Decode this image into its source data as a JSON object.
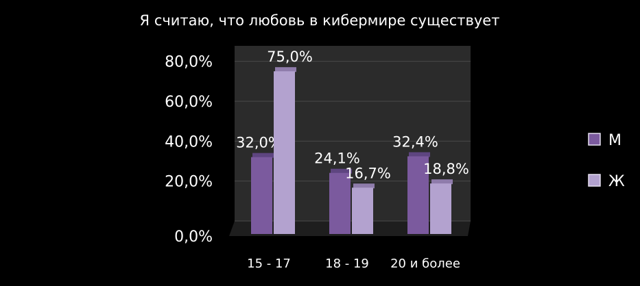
{
  "chart_data": {
    "type": "bar",
    "title": "Я считаю, что любовь в кибермире существует",
    "categories": [
      "15 - 17",
      "18 - 19",
      "20 и более"
    ],
    "series": [
      {
        "name": "М",
        "values": [
          32.0,
          24.1,
          32.4
        ],
        "labels": [
          "32,0%",
          "24,1%",
          "32,4%"
        ],
        "color": "#7b5a9e"
      },
      {
        "name": "Ж",
        "values": [
          75.0,
          16.7,
          18.8
        ],
        "labels": [
          "75,0%",
          "16,7%",
          "18,8%"
        ],
        "color": "#b3a2cf"
      }
    ],
    "yticks": [
      "0,0%",
      "20,0%",
      "40,0%",
      "60,0%",
      "80,0%"
    ],
    "ytick_values": [
      0,
      20,
      40,
      60,
      80
    ],
    "ylim": [
      0,
      85
    ],
    "grid": true,
    "legend_position": "right",
    "background": "#000000",
    "plot_background": "#2a2a2a"
  }
}
